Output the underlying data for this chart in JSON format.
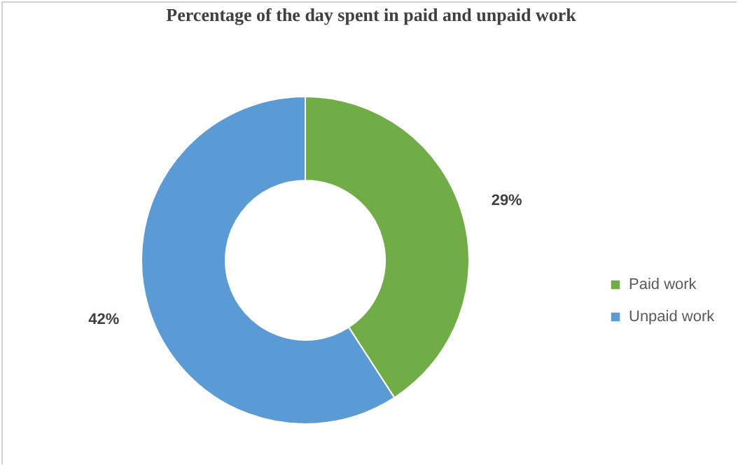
{
  "chart_data": {
    "type": "donut",
    "title": "Percentage of the day spent in paid and unpaid work",
    "categories": [
      "Paid work",
      "Unpaid work"
    ],
    "values": [
      29,
      42
    ],
    "value_labels": [
      "29%",
      "42%"
    ],
    "colors": [
      "#70ad47",
      "#5b9bd5"
    ],
    "legend": "right"
  }
}
